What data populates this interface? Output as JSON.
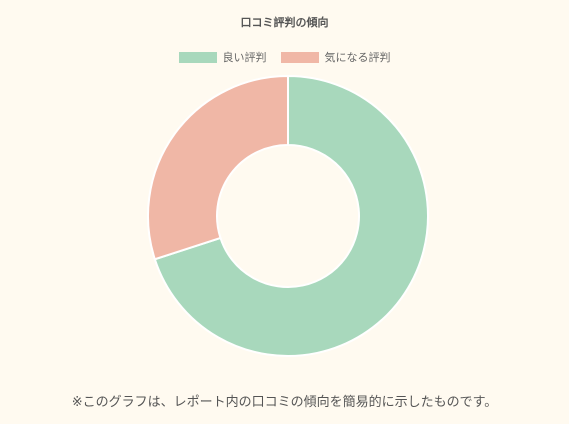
{
  "chart_data": {
    "type": "pie",
    "variant": "donut",
    "title": "口コミ評判の傾向",
    "categories": [
      "良い評判",
      "気になる評判"
    ],
    "values": [
      70,
      30
    ],
    "colors": [
      "#a8d8bc",
      "#f0b7a6"
    ],
    "legend_position": "top"
  },
  "footnote": "※このグラフは、レポート内の口コミの傾向を簡易的に示したものです。"
}
